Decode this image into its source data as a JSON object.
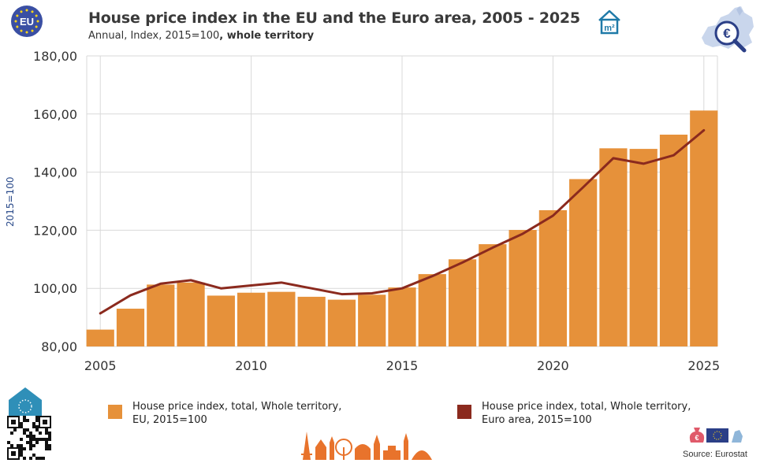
{
  "header": {
    "title": "House price index in the EU and the Euro area, 2005 - 2025",
    "subtitle_plain": "Annual, Index, 2015=100",
    "subtitle_bold": ", whole territory",
    "logo_text": "EU"
  },
  "icons": {
    "eu_logo": "eu-flag-logo",
    "m2": "m2-house-icon",
    "map": "euro-map-magnifier-icon",
    "house": "house-eu-icon",
    "qr": "qr-code",
    "skyline": "europe-skyline",
    "money": "money-bag-flag-icon"
  },
  "colors": {
    "bar": "#E6913A",
    "line": "#8B2A1E",
    "grid": "#d9d9d9",
    "ylabel": "#2a4a8a",
    "eu_blue": "#3a4fa3"
  },
  "m2_text": "m²",
  "source": "Source: Eurostat",
  "chart_data": {
    "type": "bar",
    "ylabel": "2015=100",
    "ylim": [
      80,
      180
    ],
    "yticks": [
      "80,00",
      "100,00",
      "120,00",
      "140,00",
      "160,00",
      "180,00"
    ],
    "ytick_values": [
      80,
      100,
      120,
      140,
      160,
      180
    ],
    "xticks": [
      "2005",
      "2010",
      "2015",
      "2020",
      "2025"
    ],
    "xtick_values": [
      2005,
      2010,
      2015,
      2020,
      2025
    ],
    "grid": true,
    "legend_position": "bottom",
    "x": [
      2005,
      2006,
      2007,
      2008,
      2009,
      2010,
      2011,
      2012,
      2013,
      2014,
      2015,
      2016,
      2017,
      2018,
      2019,
      2020,
      2021,
      2022,
      2023,
      2024,
      2025
    ],
    "series": [
      {
        "name": "House price index, total, Whole territory, EU, 2015=100",
        "type": "bar",
        "values": [
          85.8,
          93.0,
          101.3,
          102.0,
          97.5,
          98.5,
          98.8,
          97.1,
          96.1,
          97.8,
          100.3,
          104.9,
          110.0,
          115.2,
          120.1,
          126.9,
          137.6,
          148.2,
          148.0,
          152.9,
          161.2
        ]
      },
      {
        "name": "House price index, total, Whole territory, Euro area, 2015=100",
        "type": "line",
        "values": [
          91.4,
          97.6,
          101.6,
          102.8,
          100.0,
          101.0,
          102.0,
          100.0,
          98.0,
          98.3,
          100.0,
          104.2,
          108.9,
          114.0,
          118.8,
          125.0,
          134.8,
          144.8,
          142.9,
          145.8,
          154.4
        ]
      }
    ]
  }
}
